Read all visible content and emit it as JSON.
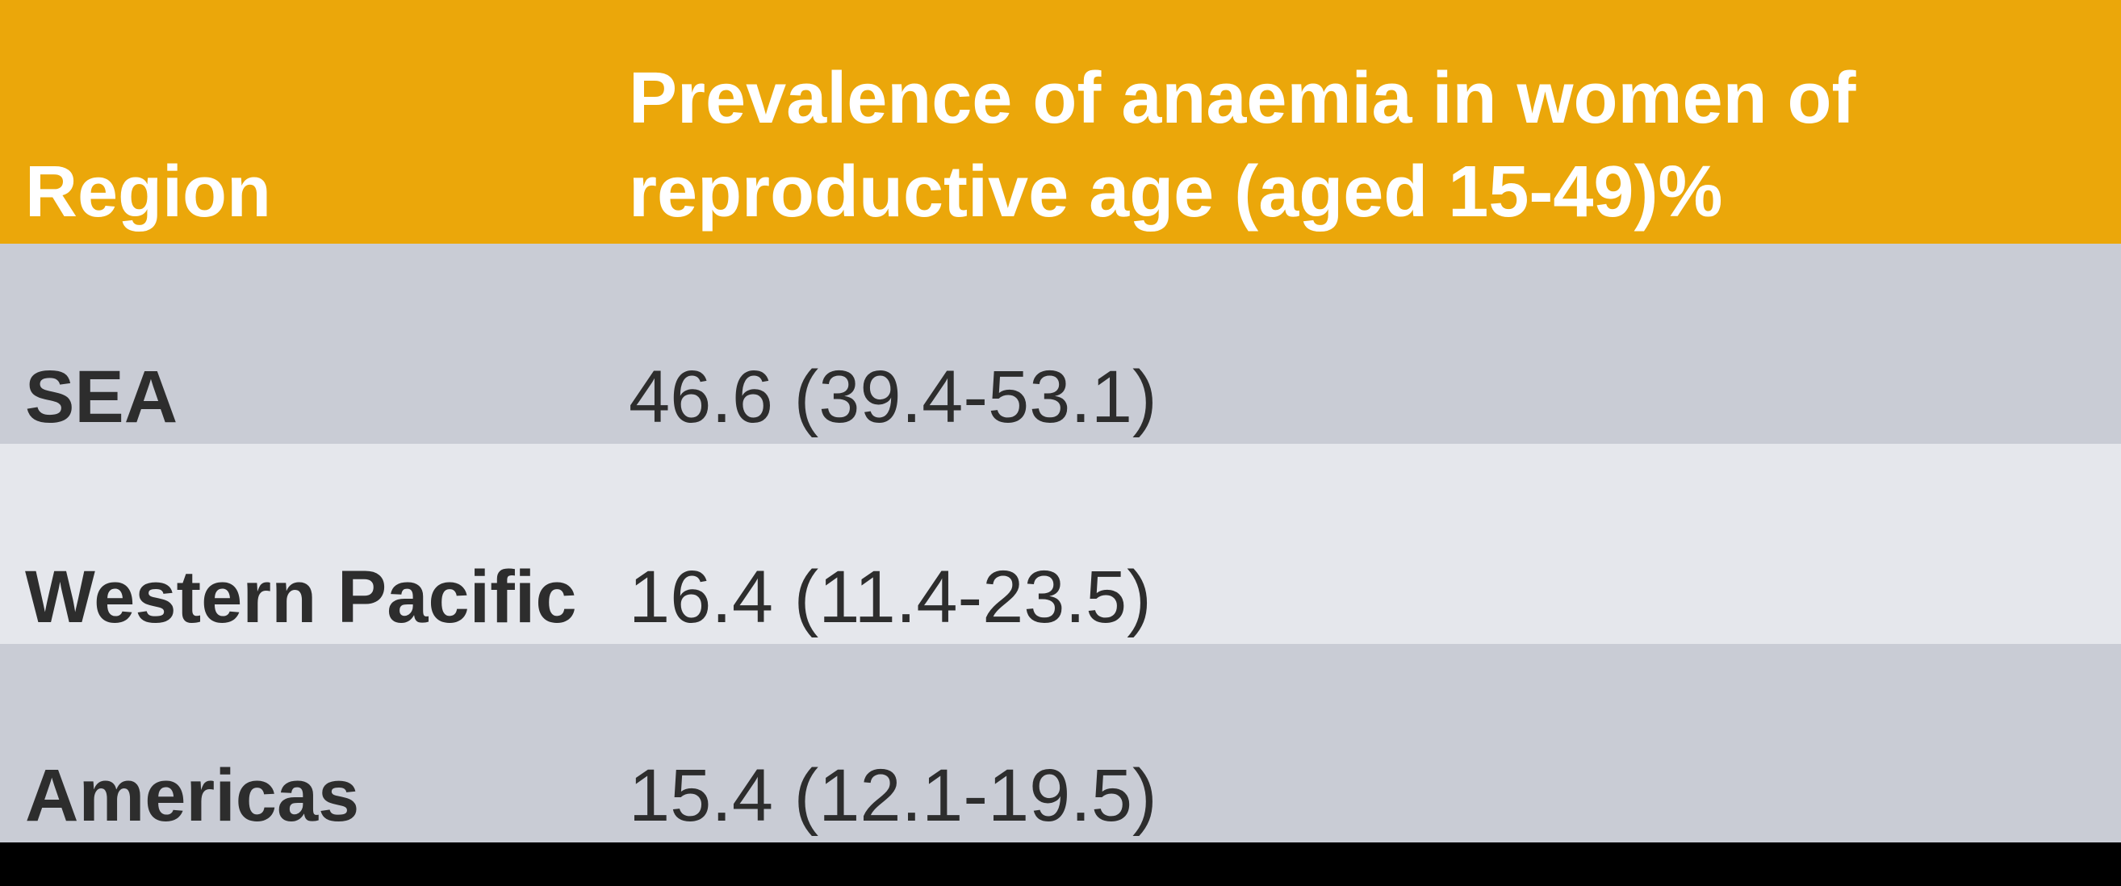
{
  "table": {
    "header": {
      "region_label": "Region",
      "value_label_lines": [
        "Prevalence of anaemia in women of",
        "reproductive age (aged 15-49)%"
      ]
    },
    "rows": [
      {
        "region": "SEA",
        "value": "46.6 (39.4-53.1)"
      },
      {
        "region": "Western Pacific",
        "value": "16.4 (11.4-23.5)"
      },
      {
        "region": "Americas",
        "value": "15.4 (12.1-19.5)"
      }
    ]
  },
  "colors": {
    "header_bg": "#EBA70A",
    "header_text": "#FFFFFF",
    "row_odd_bg": "#C9CCD5",
    "row_even_bg": "#E5E7EC",
    "body_text": "#2D2D2D",
    "bottom_bar": "#000000"
  },
  "chart_data": {
    "type": "table",
    "columns": [
      "Region",
      "Prevalence of anaemia in women of reproductive age (aged 15-49)%"
    ],
    "rows": [
      [
        "SEA",
        "46.6 (39.4-53.1)"
      ],
      [
        "Western Pacific",
        "16.4 (11.4-23.5)"
      ],
      [
        "Americas",
        "15.4 (12.1-19.5)"
      ]
    ],
    "values": [
      {
        "region": "SEA",
        "prevalence_pct": 46.6,
        "ci_low": 39.4,
        "ci_high": 53.1
      },
      {
        "region": "Western Pacific",
        "prevalence_pct": 16.4,
        "ci_low": 11.4,
        "ci_high": 23.5
      },
      {
        "region": "Americas",
        "prevalence_pct": 15.4,
        "ci_low": 12.1,
        "ci_high": 19.5
      }
    ]
  }
}
